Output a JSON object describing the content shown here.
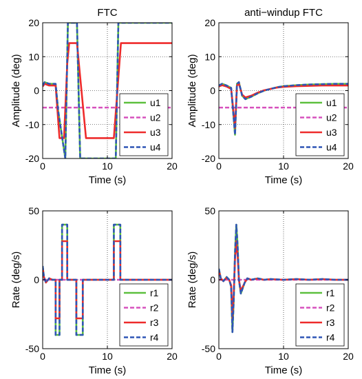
{
  "colors": {
    "series": [
      "#5cbf3d",
      "#d651bd",
      "#ee2b2b",
      "#2f55b5"
    ],
    "axes": "#000000",
    "grid": "#000000"
  },
  "chart_data": [
    {
      "type": "line",
      "title": "FTC",
      "xlabel": "Time (s)",
      "ylabel": "Amplitude (deg)",
      "xlim": [
        0,
        20
      ],
      "ylim": [
        -20,
        20
      ],
      "xticks": [
        0,
        10,
        20
      ],
      "yticks": [
        -20,
        -10,
        0,
        10,
        20
      ],
      "grid": true,
      "legend_position": "bottom-right",
      "series": [
        {
          "name": "u1",
          "style": "solid",
          "x": [
            0,
            0.3,
            1.0,
            2.0,
            2.4,
            3.5,
            3.9,
            5.3,
            5.8,
            7.5,
            11.3,
            11.7,
            20
          ],
          "y": [
            1.5,
            2.5,
            2.0,
            2.0,
            -6,
            -20,
            20,
            20,
            -20,
            -20,
            -20,
            20,
            20
          ]
        },
        {
          "name": "u2",
          "style": "dashed",
          "x": [
            0,
            20
          ],
          "y": [
            -5,
            -5
          ]
        },
        {
          "name": "u3",
          "style": "solid",
          "x": [
            0,
            0.3,
            1.0,
            2.0,
            2.6,
            3.3,
            3.8,
            4.1,
            5.3,
            6.7,
            11.0,
            12.1,
            20
          ],
          "y": [
            1.2,
            2.0,
            1.5,
            1.5,
            -14,
            -14,
            8,
            14,
            14,
            -14,
            -14,
            14,
            14
          ]
        },
        {
          "name": "u4",
          "style": "dashed",
          "x": [
            0,
            0.3,
            1.0,
            2.0,
            2.4,
            3.5,
            3.9,
            5.3,
            5.8,
            7.5,
            11.3,
            11.7,
            20
          ],
          "y": [
            1.5,
            2.5,
            2.0,
            2.0,
            -6,
            -20,
            20,
            20,
            -20,
            -20,
            -20,
            20,
            20
          ]
        }
      ]
    },
    {
      "type": "line",
      "title": "anti−windup FTC",
      "xlabel": "Time (s)",
      "ylabel": "Amplitude (deg)",
      "xlim": [
        0,
        20
      ],
      "ylim": [
        -20,
        20
      ],
      "xticks": [
        0,
        10,
        20
      ],
      "yticks": [
        -20,
        -10,
        0,
        10,
        20
      ],
      "grid": true,
      "legend_position": "bottom-right",
      "series": [
        {
          "name": "u1",
          "style": "solid",
          "x": [
            0,
            0.5,
            1.2,
            1.9,
            2.2,
            2.5,
            2.8,
            3.1,
            3.6,
            4.1,
            5,
            6,
            7,
            8,
            9,
            10,
            12,
            14,
            16,
            18,
            20
          ],
          "y": [
            1.5,
            2.0,
            1.5,
            0.8,
            -6,
            -13,
            2,
            2.5,
            -1.5,
            -2.5,
            -1.8,
            -0.8,
            0,
            0.5,
            1.0,
            1.3,
            1.6,
            1.8,
            1.9,
            2.0,
            2.0
          ]
        },
        {
          "name": "u2",
          "style": "dashed",
          "x": [
            0,
            20
          ],
          "y": [
            -5,
            -5
          ]
        },
        {
          "name": "u3",
          "style": "solid",
          "x": [
            0,
            0.5,
            1.2,
            1.9,
            2.2,
            2.5,
            2.8,
            3.1,
            3.6,
            4.1,
            5,
            6,
            7,
            8,
            9,
            10,
            12,
            14,
            16,
            18,
            20
          ],
          "y": [
            1.2,
            1.6,
            1.2,
            0.5,
            -5,
            -11,
            1.5,
            2,
            -1.2,
            -2.0,
            -1.5,
            -0.6,
            0.1,
            0.5,
            0.9,
            1.1,
            1.3,
            1.4,
            1.5,
            1.5,
            1.5
          ]
        },
        {
          "name": "u4",
          "style": "dashed",
          "x": [
            0,
            0.5,
            1.2,
            1.9,
            2.2,
            2.5,
            2.8,
            3.1,
            3.6,
            4.1,
            5,
            6,
            7,
            8,
            9,
            10,
            12,
            14,
            16,
            18,
            20
          ],
          "y": [
            1.5,
            2.0,
            1.5,
            0.8,
            -6,
            -13,
            2,
            2.5,
            -1.5,
            -2.5,
            -1.8,
            -0.8,
            0,
            0.5,
            1.0,
            1.3,
            1.6,
            1.8,
            1.9,
            2.0,
            2.0
          ]
        }
      ]
    },
    {
      "type": "line",
      "title": "",
      "xlabel": "Time (s)",
      "ylabel": "Rate (deg/s)",
      "xlim": [
        0,
        20
      ],
      "ylim": [
        -50,
        50
      ],
      "xticks": [
        0,
        10,
        20
      ],
      "yticks": [
        -50,
        0,
        50
      ],
      "grid": true,
      "legend_position": "bottom-right",
      "series": [
        {
          "name": "r1",
          "style": "solid",
          "x": [
            0,
            0.2,
            0.5,
            1.0,
            1.5,
            2.0,
            2.0,
            2.6,
            2.6,
            3.0,
            3.0,
            3.8,
            3.8,
            5.2,
            5.2,
            6.2,
            6.2,
            11.0,
            11.0,
            12.0,
            12.0,
            20
          ],
          "y": [
            10,
            2,
            -2,
            1,
            0,
            0,
            -40,
            -40,
            0,
            0,
            40,
            40,
            0,
            0,
            -40,
            -40,
            0,
            0,
            40,
            40,
            0,
            0
          ]
        },
        {
          "name": "r2",
          "style": "dashed",
          "x": [
            0,
            20
          ],
          "y": [
            0,
            0
          ]
        },
        {
          "name": "r3",
          "style": "solid",
          "x": [
            0,
            0.2,
            0.5,
            1.0,
            1.5,
            2.0,
            2.0,
            2.6,
            2.6,
            3.0,
            3.0,
            3.8,
            3.8,
            5.2,
            5.2,
            6.2,
            6.2,
            11.0,
            11.0,
            12.0,
            12.0,
            20
          ],
          "y": [
            9,
            2,
            -2,
            1,
            0,
            0,
            -28,
            -28,
            0,
            0,
            28,
            28,
            0,
            0,
            -28,
            -28,
            0,
            0,
            28,
            28,
            0,
            0
          ]
        },
        {
          "name": "r4",
          "style": "dashed",
          "x": [
            0,
            0.2,
            0.5,
            1.0,
            1.5,
            2.0,
            2.0,
            2.6,
            2.6,
            3.0,
            3.0,
            3.8,
            3.8,
            5.2,
            5.2,
            6.2,
            6.2,
            11.0,
            11.0,
            12.0,
            12.0,
            20
          ],
          "y": [
            10,
            2,
            -2,
            1,
            0,
            0,
            -40,
            -40,
            0,
            0,
            40,
            40,
            0,
            0,
            -40,
            -40,
            0,
            0,
            40,
            40,
            0,
            0
          ]
        }
      ]
    },
    {
      "type": "line",
      "title": "",
      "xlabel": "Time (s)",
      "ylabel": "Rate (deg/s)",
      "xlim": [
        0,
        20
      ],
      "ylim": [
        -50,
        50
      ],
      "xticks": [
        0,
        10,
        20
      ],
      "yticks": [
        -50,
        0,
        50
      ],
      "grid": true,
      "legend_position": "bottom-right",
      "series": [
        {
          "name": "r1",
          "style": "solid",
          "x": [
            0,
            0.3,
            0.7,
            1.2,
            1.6,
            1.9,
            2.1,
            2.3,
            2.5,
            2.7,
            2.9,
            3.1,
            3.4,
            3.7,
            4.0,
            4.4,
            5,
            6,
            7,
            8,
            10,
            12,
            14,
            16,
            18,
            20
          ],
          "y": [
            8,
            1,
            -1,
            2,
            0,
            -5,
            -38,
            -15,
            20,
            40,
            25,
            0,
            -10,
            -6,
            -2,
            1,
            0,
            1,
            0,
            0.5,
            0,
            0.5,
            0,
            0.5,
            0,
            0
          ]
        },
        {
          "name": "r2",
          "style": "dashed",
          "x": [
            0,
            20
          ],
          "y": [
            0,
            0
          ]
        },
        {
          "name": "r3",
          "style": "solid",
          "x": [
            0,
            0.3,
            0.7,
            1.2,
            1.6,
            1.9,
            2.1,
            2.3,
            2.5,
            2.7,
            2.9,
            3.1,
            3.4,
            3.7,
            4.0,
            4.4,
            5,
            6,
            7,
            8,
            10,
            12,
            14,
            16,
            18,
            20
          ],
          "y": [
            7,
            1,
            -1,
            1.5,
            0,
            -4,
            -28,
            -10,
            15,
            28,
            18,
            0,
            -8,
            -5,
            -2,
            1,
            0,
            0.8,
            0,
            0.4,
            0,
            0.4,
            0,
            0.4,
            0,
            0
          ]
        },
        {
          "name": "r4",
          "style": "dashed",
          "x": [
            0,
            0.3,
            0.7,
            1.2,
            1.6,
            1.9,
            2.1,
            2.3,
            2.5,
            2.7,
            2.9,
            3.1,
            3.4,
            3.7,
            4.0,
            4.4,
            5,
            6,
            7,
            8,
            10,
            12,
            14,
            16,
            18,
            20
          ],
          "y": [
            8,
            1,
            -1,
            2,
            0,
            -5,
            -38,
            -15,
            20,
            40,
            25,
            0,
            -10,
            -6,
            -2,
            1,
            0,
            1,
            0,
            0.5,
            0,
            0.5,
            0,
            0.5,
            0,
            0
          ]
        }
      ]
    }
  ]
}
